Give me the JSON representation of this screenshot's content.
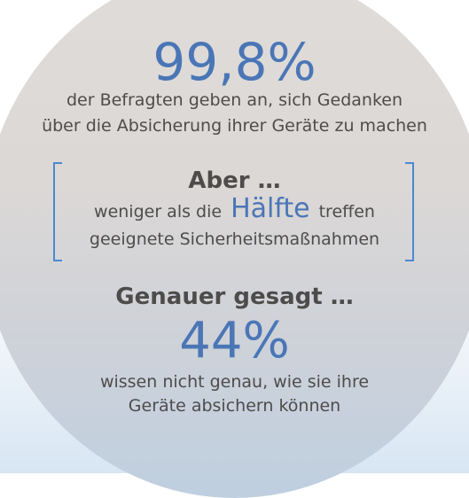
{
  "stat1": {
    "value": "99,8%",
    "line1": "der Befragten geben an, sich Gedanken",
    "line2": "über die Absicherung ihrer Geräte zu machen"
  },
  "box": {
    "heading": "Aber …",
    "pre": "weniger als die",
    "highlight": "Hälfte",
    "post": "treffen",
    "line2": "geeignete Sicherheitsmaßnahmen"
  },
  "stat2": {
    "heading": "Genauer gesagt …",
    "value": "44%",
    "line1": "wissen nicht genau, wie sie ihre",
    "line2": "Geräte absichern können"
  },
  "colors": {
    "accent_blue": "#4a76b6",
    "bracket_blue": "#4a8ad0",
    "text_gray": "#4e4c4b"
  }
}
